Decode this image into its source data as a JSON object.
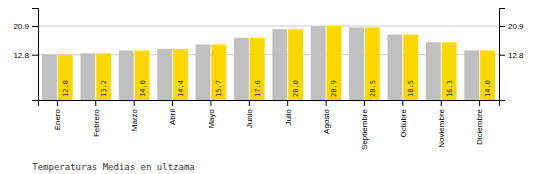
{
  "chart_data": {
    "type": "bar",
    "title": "Temperaturas Medias en ultzama",
    "categories": [
      "Enero",
      "Febrero",
      "Marzo",
      "Abril",
      "Mayo",
      "Junio",
      "Julio",
      "Agosto",
      "Septiembre",
      "Octubre",
      "Noviembre",
      "Diciembre"
    ],
    "series": [
      {
        "color": "#C0C0C0",
        "values": [
          12.8,
          13.2,
          14.0,
          14.4,
          15.7,
          17.6,
          20.0,
          20.9,
          20.5,
          18.5,
          16.3,
          14.0
        ]
      },
      {
        "color": "#FFD700",
        "values": [
          12.8,
          13.2,
          14.0,
          14.4,
          15.7,
          17.6,
          20.0,
          20.9,
          20.5,
          18.5,
          16.3,
          14.0
        ],
        "data_labels": true,
        "value_labels": [
          "12.8",
          "13.2",
          "14.0",
          "14.4",
          "15.7",
          "17.6",
          "20.0",
          "20.9",
          "20.5",
          "18.5",
          "16.3",
          "14.0"
        ]
      }
    ],
    "ylim": [
      0.0,
      26.0
    ],
    "yticks": [
      12.8,
      20.9
    ],
    "y2lim": [
      0.0,
      26.0
    ],
    "y2ticks": [
      12.8,
      20.9
    ],
    "grid": true
  }
}
